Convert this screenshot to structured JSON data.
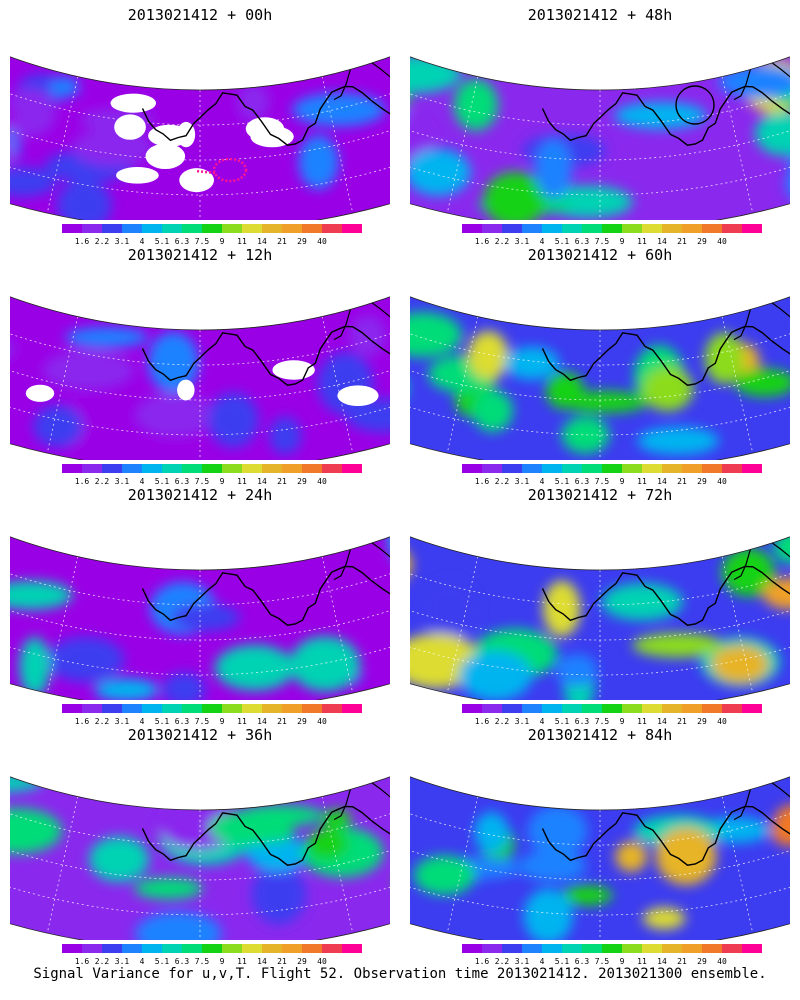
{
  "chart_data": [
    {
      "type": "heatmap",
      "title": "2013021412 + 00h",
      "intensity": 0.15,
      "blank_fraction": 0.25,
      "extra_feature": "magenta-track"
    },
    {
      "type": "heatmap",
      "title": "2013021412 + 12h",
      "intensity": 0.25,
      "blank_fraction": 0.15
    },
    {
      "type": "heatmap",
      "title": "2013021412 + 24h",
      "intensity": 0.35,
      "blank_fraction": 0.07
    },
    {
      "type": "heatmap",
      "title": "2013021412 + 36h",
      "intensity": 0.42,
      "blank_fraction": 0.0
    },
    {
      "type": "heatmap",
      "title": "2013021412 + 48h",
      "intensity": 0.55,
      "blank_fraction": 0.0,
      "extra_feature": "black-circle"
    },
    {
      "type": "heatmap",
      "title": "2013021412 + 60h",
      "intensity": 0.63,
      "blank_fraction": 0.0
    },
    {
      "type": "heatmap",
      "title": "2013021412 + 72h",
      "intensity": 0.72,
      "blank_fraction": 0.0
    },
    {
      "type": "heatmap",
      "title": "2013021412 + 84h",
      "intensity": 0.8,
      "blank_fraction": 0.0
    }
  ],
  "colorbar": {
    "colors": [
      "#9a00e6",
      "#8a28ee",
      "#3c3cf0",
      "#1e82ff",
      "#00b4f0",
      "#00d2b4",
      "#00dc78",
      "#14d214",
      "#8cdc1e",
      "#dcdc32",
      "#e6b428",
      "#f0a028",
      "#f07828",
      "#f03c50",
      "#ff0096"
    ],
    "labels": [
      "1.6",
      "2.2",
      "3.1",
      "4",
      "5.1",
      "6.3",
      "7.5",
      "9",
      "11",
      "14",
      "21",
      "29",
      "40"
    ]
  },
  "footer": "Signal Variance for u,v,T. Flight 52. Observation time 2013021412. 2013021300 ensemble."
}
